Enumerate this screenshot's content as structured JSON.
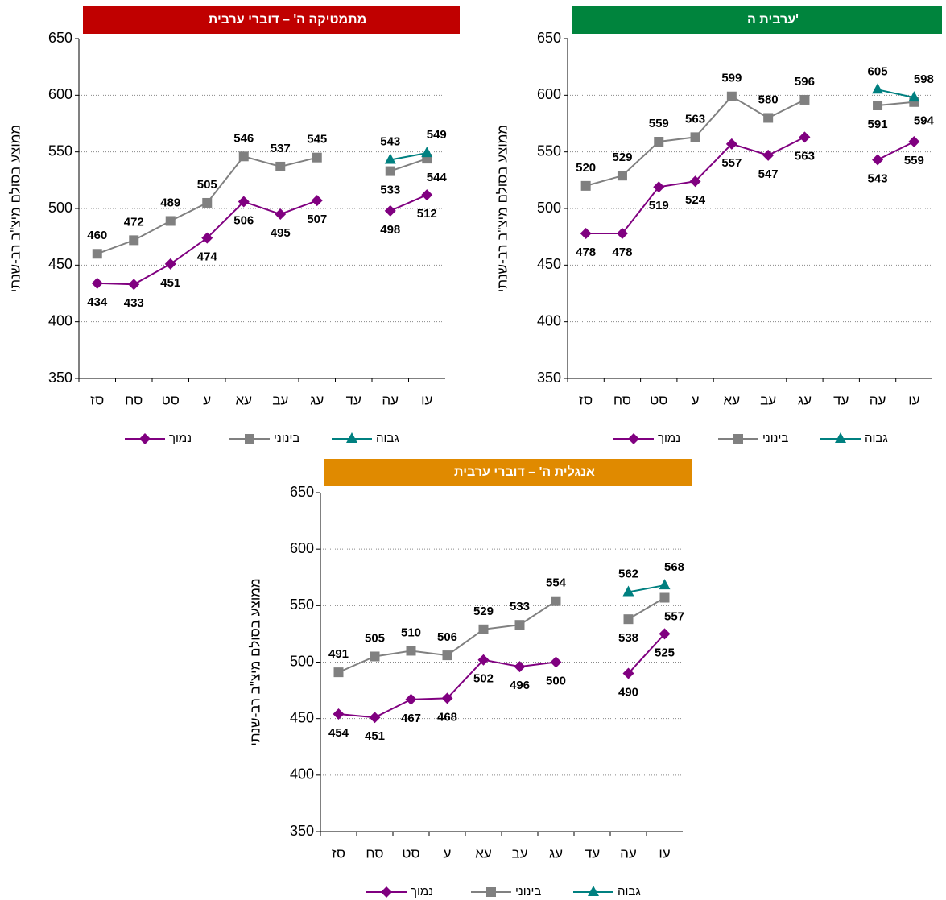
{
  "chart_data": [
    {
      "type": "line",
      "title": "מתמטיקה ה' – דוברי ערבית",
      "title_color": "#c00000",
      "y_label": "ממוצע בסולם מיצ\"ב רב-שנתי",
      "categories": [
        "סז",
        "סח",
        "סט",
        "ע",
        "עא",
        "עב",
        "עג",
        "עד",
        "עה",
        "עו"
      ],
      "series": [
        {
          "name": "נמוך",
          "color": "#800080",
          "marker": "diamond",
          "values": [
            434,
            433,
            451,
            474,
            506,
            495,
            507,
            null,
            498,
            512
          ]
        },
        {
          "name": "בינוני",
          "color": "#808080",
          "marker": "square",
          "values": [
            460,
            472,
            489,
            505,
            546,
            537,
            545,
            null,
            533,
            544
          ]
        },
        {
          "name": "גבוה",
          "color": "#008080",
          "marker": "triangle",
          "values": [
            null,
            null,
            null,
            null,
            null,
            null,
            null,
            null,
            543,
            549
          ]
        }
      ],
      "ylim": [
        350,
        650
      ],
      "yticks": [
        350,
        400,
        450,
        500,
        550,
        600,
        650
      ],
      "grid": true,
      "legend": "bottom"
    },
    {
      "type": "line",
      "title": "ערבית ה'",
      "title_color": "#00843d",
      "y_label": "ממוצע בסולם מיצ\"ב רב-שנתי",
      "categories": [
        "סז",
        "סח",
        "סט",
        "ע",
        "עא",
        "עב",
        "עג",
        "עד",
        "עה",
        "עו"
      ],
      "series": [
        {
          "name": "נמוך",
          "color": "#800080",
          "marker": "diamond",
          "values": [
            478,
            478,
            519,
            524,
            557,
            547,
            563,
            null,
            543,
            559
          ]
        },
        {
          "name": "בינוני",
          "color": "#808080",
          "marker": "square",
          "values": [
            520,
            529,
            559,
            563,
            599,
            580,
            596,
            null,
            591,
            594
          ]
        },
        {
          "name": "גבוה",
          "color": "#008080",
          "marker": "triangle",
          "values": [
            null,
            null,
            null,
            null,
            null,
            null,
            null,
            null,
            605,
            598
          ]
        }
      ],
      "ylim": [
        350,
        650
      ],
      "yticks": [
        350,
        400,
        450,
        500,
        550,
        600,
        650
      ],
      "grid": true,
      "legend": "bottom"
    },
    {
      "type": "line",
      "title": "אנגלית ה' – דוברי ערבית",
      "title_color": "#e08a00",
      "y_label": "ממוצע בסולם מיצ\"ב רב-שנתי",
      "categories": [
        "סז",
        "סח",
        "סט",
        "ע",
        "עא",
        "עב",
        "עג",
        "עד",
        "עה",
        "עו"
      ],
      "series": [
        {
          "name": "נמוך",
          "color": "#800080",
          "marker": "diamond",
          "values": [
            454,
            451,
            467,
            468,
            502,
            496,
            500,
            null,
            490,
            525
          ]
        },
        {
          "name": "בינוני",
          "color": "#808080",
          "marker": "square",
          "values": [
            491,
            505,
            510,
            506,
            529,
            533,
            554,
            null,
            538,
            557
          ]
        },
        {
          "name": "גבוה",
          "color": "#008080",
          "marker": "triangle",
          "values": [
            null,
            null,
            null,
            null,
            null,
            null,
            null,
            null,
            562,
            568
          ]
        }
      ],
      "ylim": [
        350,
        650
      ],
      "yticks": [
        350,
        400,
        450,
        500,
        550,
        600,
        650
      ],
      "grid": true,
      "legend": "bottom"
    }
  ]
}
